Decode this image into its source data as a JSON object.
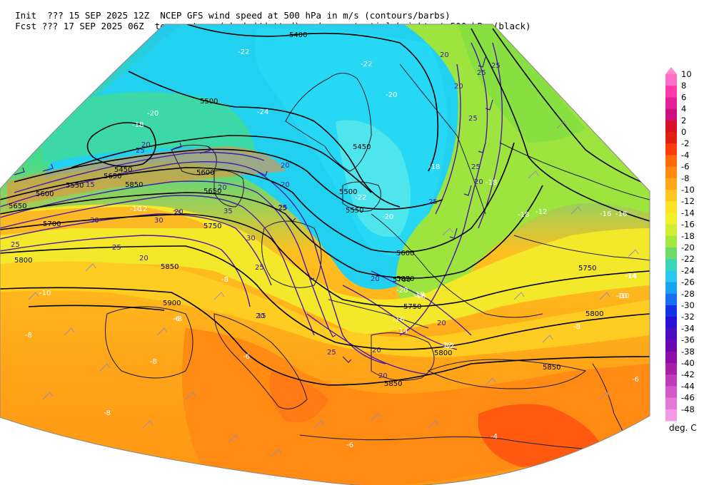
{
  "header": {
    "line1_left": "Init  ??? 15 SEP 2025 12Z",
    "line1_right": "NCEP GFS wind speed at 500 hPa in m/s (contours/barbs)",
    "line2_left": "Fcst ??? 17 SEP 2025 06Z",
    "line2_right": "temperature (shaded/dotted) and geopotential height at 500 hPa (black)"
  },
  "colorbar": {
    "units": "deg. C",
    "levels": [
      "10",
      "8",
      "6",
      "4",
      "2",
      "0",
      "-2",
      "-4",
      "-6",
      "-8",
      "-10",
      "-12",
      "-14",
      "-16",
      "-18",
      "-20",
      "-22",
      "-24",
      "-26",
      "-28",
      "-30",
      "-32",
      "-34",
      "-36",
      "-38",
      "-40",
      "-42",
      "-44",
      "-46",
      "-48"
    ],
    "colors": [
      "#ff6ec7",
      "#ff3aa8",
      "#e6209a",
      "#cc1080",
      "#d8102a",
      "#e02010",
      "#ff3b0a",
      "#ff6a0a",
      "#ff8a10",
      "#ffa81a",
      "#ffc520",
      "#ffe322",
      "#f2f02a",
      "#d2ee34",
      "#a6e640",
      "#6fdc6a",
      "#3ad6b8",
      "#2ac8f0",
      "#18a2f0",
      "#1a6ef0",
      "#1432e6",
      "#2a10d2",
      "#4a0cc0",
      "#6a08b4",
      "#8c10a8",
      "#a820a8",
      "#c03cb8",
      "#d25ac8",
      "#e47ad6",
      "#f39ae6"
    ]
  },
  "gph_labels": [
    "5400",
    "5500",
    "5450",
    "5450",
    "5550",
    "5600",
    "5650",
    "5700",
    "5750",
    "5800",
    "5850",
    "5900",
    "5600",
    "5650",
    "5500",
    "5550",
    "5600",
    "5700",
    "5750",
    "5800",
    "5850",
    "5850",
    "5800",
    "5750",
    "5850",
    "5850",
    "5650"
  ],
  "wind_labels": [
    "20",
    "25",
    "20",
    "15",
    "25",
    "30",
    "35",
    "20",
    "25",
    "30",
    "25",
    "30",
    "25",
    "20",
    "20",
    "25",
    "20",
    "20",
    "25",
    "20",
    "25",
    "20",
    "25",
    "20",
    "20",
    "25",
    "20",
    "15",
    "20",
    "25",
    "20",
    "25",
    "25"
  ],
  "temp_labels": [
    "-22",
    "-24",
    "-20",
    "-22",
    "-20",
    "-18",
    "-16",
    "-18",
    "-16",
    "-14",
    "-12",
    "-10",
    "-8",
    "-6",
    "-10",
    "-8",
    "-6",
    "-8",
    "-6",
    "-4",
    "-6",
    "-8",
    "-10",
    "-12",
    "-14",
    "-16",
    "-18",
    "-20",
    "-18",
    "-16",
    "-12",
    "-14",
    "-10",
    "-8",
    "-8",
    "-18",
    "-20",
    "-22",
    "-12"
  ]
}
